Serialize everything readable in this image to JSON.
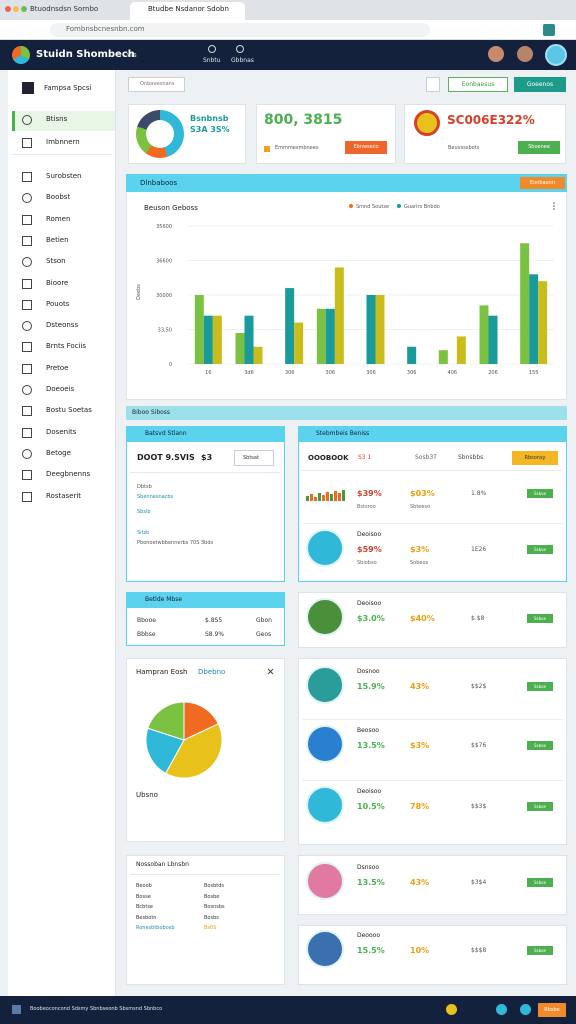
{
  "browser": {
    "tabs": [
      "Btuodnsdsn Sornbo",
      "Btudbe Nsdanor Sdobn"
    ],
    "url": "Fombnsbcnesnbn.com"
  },
  "header": {
    "brand": "Stuidn Shombech",
    "nav": "Cvis",
    "icons": [
      "Snbtu",
      "Gbbnas"
    ]
  },
  "sidebar": {
    "title": "Fampsa Spcsi",
    "items": [
      "Btisns",
      "Imbnnern",
      "Surobsten",
      "Boobst",
      "Romen",
      "Betien",
      "Stson",
      "Bioore",
      "Pouots",
      "Dsteonss",
      "Brnts Fociis",
      "Pretoe",
      "Doeoeis",
      "Bostu Soetas",
      "Dosenits",
      "Betoge",
      "Deegbnenns",
      "Rostaserit"
    ]
  },
  "toolbar": {
    "search": "Onbaveonans",
    "buttons": [
      "Eonbaesus",
      "Goeenos"
    ]
  },
  "kpis": [
    {
      "title": "Bsnbnsb",
      "value": "S3A 3S%"
    },
    {
      "value": "800, 3815",
      "note": "Emmmesmbnees",
      "button": "Ebnwseco"
    },
    {
      "value": "SC006E322%",
      "note": "Beuvsssbots",
      "button": "Sboenee"
    }
  ],
  "main_chart": {
    "type": "bar",
    "header": "Dlnbaboos",
    "action": "Eonbaonn",
    "title": "Beuson Geboss",
    "y_label": "Deebs",
    "categories": [
      "16",
      "3d6",
      "306",
      "306",
      "306",
      "306",
      "406",
      "206",
      "155"
    ],
    "series": [
      {
        "name": "Smnd Soutse",
        "color": "#7cc242",
        "values": [
          20,
          9,
          null,
          16,
          null,
          null,
          4,
          17,
          35
        ]
      },
      {
        "name": "Guarirs Bnbdo",
        "color": "#1a9a9a",
        "values": [
          14,
          14,
          22,
          16,
          20,
          5,
          null,
          14,
          26
        ]
      },
      {
        "color": "#c9bd1b",
        "values": [
          14,
          5,
          12,
          28,
          20,
          null,
          8,
          null,
          24
        ]
      }
    ],
    "ylim": [
      0,
      40
    ],
    "yticks": [
      0,
      {
        "value": 10,
        "label": "33,50"
      },
      {
        "value": 20,
        "label": "30000"
      },
      {
        "value": 30,
        "label": "36600"
      },
      {
        "value": 40,
        "label": "35600"
      }
    ]
  },
  "section": "Biboo Siboss",
  "left_panels": [
    {
      "title": "Batsvd Stlann",
      "value": "DOOT 9.SVIS",
      "value2": "$3",
      "select": "Sbtsat",
      "lines": [
        "Dbtsb",
        "Sbennesnacbs",
        "Sbsib",
        "Sitsb",
        "Pbonoetwbbennerbs 70S 3bds"
      ]
    },
    {
      "title": "Betlde Mbse",
      "rows": [
        [
          "Bbooe",
          "$.8S5",
          "Gbon"
        ],
        [
          "Bbbse",
          "S8.9%",
          "Geos"
        ]
      ]
    }
  ],
  "pie": {
    "type": "pie",
    "title": "Hampran Eosh",
    "tag": "Dbebno",
    "label": "Ubsno",
    "values": [
      18,
      40,
      22,
      20
    ],
    "colors": [
      "#f06a22",
      "#e8c21a",
      "#2fb8d8",
      "#7cc242"
    ]
  },
  "notes": {
    "title": "Nossoban Lbnsbn",
    "rows": [
      [
        "Beoob",
        "Bosbtds"
      ],
      [
        "Bosse",
        "Bosbe"
      ],
      [
        "Bcbtse",
        "Bosnsbs"
      ],
      [
        "Besbotn",
        "Bosbs"
      ],
      [
        "Ronesbtbobosb",
        "Bs0S"
      ]
    ]
  },
  "right_panel": {
    "title": "Stebmbeis Beniss",
    "head": [
      "OOOBOOK",
      "S3 1",
      "Sosb3T",
      "Sbnsbbs",
      "Rbsonsy"
    ],
    "rows": [
      {
        "pct1": "$39%",
        "pct2": "$03%",
        "num": "1.8%",
        "badge": "Ssboe",
        "sub1": "Bstsroo",
        "sub2": "Sbteeso"
      },
      {
        "name": "Deoisoo",
        "pct1": "$59%",
        "pct2": "$3%",
        "num": "1E26",
        "badge": "Ssboe",
        "sub1": "Sbiobso",
        "sub2": "Sobeos"
      },
      {
        "name": "Deoisoo",
        "pct1": "$3.0%",
        "pct2": "$40%",
        "num": "$.$8",
        "badge": "Ssboe"
      },
      {
        "name": "Dosnoo",
        "pct1": "15.9%",
        "pct2": "43%",
        "num": "$$2$",
        "badge": "Ssboe"
      },
      {
        "name": "Beosoo",
        "pct1": "13.5%",
        "pct2": "$3%",
        "num": "$$76",
        "badge": "Ssboe"
      },
      {
        "name": "Deoisoo",
        "pct1": "10.5%",
        "pct2": "78%",
        "num": "$$3$",
        "badge": "Ssboe"
      },
      {
        "name": "Dsnsoo",
        "pct1": "13.5%",
        "pct2": "43%",
        "num": "$3$4",
        "badge": "Ssboe"
      },
      {
        "name": "Deoooo",
        "pct1": "15.5%",
        "pct2": "10%",
        "num": "$$$8",
        "badge": "Ssboe"
      }
    ]
  },
  "footer": {
    "text": "Boobeoconcond Sdsmy Sbnbseonb Sbsmsnd Sbnbco",
    "button": "Rbsbe"
  }
}
